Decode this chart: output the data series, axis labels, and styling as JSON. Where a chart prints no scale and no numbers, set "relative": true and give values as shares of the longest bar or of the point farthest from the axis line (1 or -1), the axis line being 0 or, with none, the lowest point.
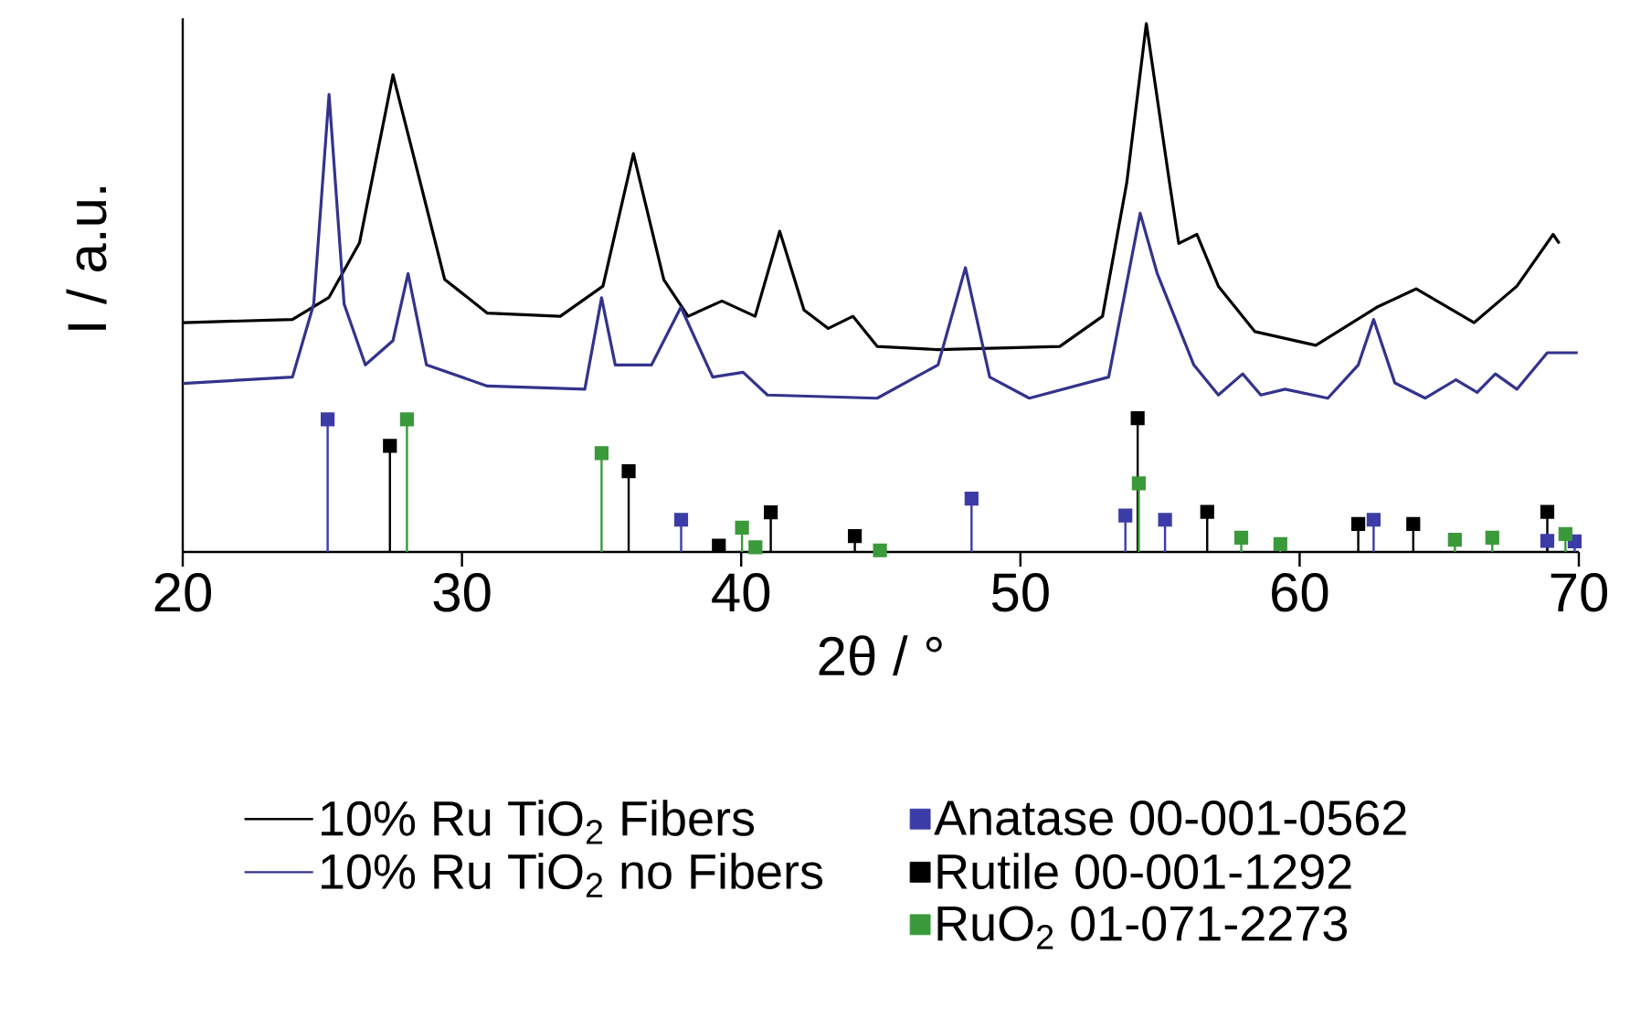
{
  "chart_data": {
    "type": "line",
    "relative": true,
    "xlabel": "2θ / °",
    "ylabel": "I / a.u.",
    "xlim": [
      20,
      70
    ],
    "xticks": [
      20,
      30,
      40,
      50,
      60,
      70
    ],
    "tick_labels": "x",
    "legend": "bottom",
    "series": [
      {
        "name": "10% Ru TiO$_{2}$ Fibers",
        "color": "#000000",
        "x": [
          20,
          23.93,
          25.24,
          26.33,
          27.53,
          28.51,
          29.38,
          30.91,
          33.52,
          35.05,
          36.14,
          37.23,
          38.1,
          39.31,
          40.5,
          41.38,
          42.25,
          43.12,
          44.0,
          44.87,
          47.03,
          51.41,
          52.94,
          53.81,
          54.51,
          55.34,
          55.67,
          56.32,
          57.09,
          58.4,
          60.58,
          62.76,
          64.18,
          66.25,
          67.78,
          69.08,
          69.3
        ],
        "values": [
          0.434,
          0.44,
          0.482,
          0.585,
          0.903,
          0.699,
          0.516,
          0.452,
          0.446,
          0.503,
          0.754,
          0.515,
          0.446,
          0.475,
          0.446,
          0.607,
          0.458,
          0.423,
          0.446,
          0.389,
          0.383,
          0.389,
          0.446,
          0.699,
          1.0,
          0.699,
          0.584,
          0.601,
          0.503,
          0.417,
          0.391,
          0.463,
          0.498,
          0.434,
          0.503,
          0.601,
          0.584
        ]
      },
      {
        "name": "10% Ru TiO$_{2}$ no Fibers",
        "color": "#33338c",
        "x": [
          20,
          23.93,
          24.69,
          25.24,
          25.78,
          26.54,
          27.53,
          28.07,
          28.73,
          30.91,
          34.4,
          35.0,
          35.49,
          36.79,
          37.84,
          38.98,
          40.07,
          40.94,
          44.87,
          47.05,
          48.03,
          48.9,
          50.32,
          53.16,
          54.29,
          54.9,
          56.21,
          57.09,
          57.96,
          58.61,
          59.48,
          61.01,
          62.1,
          62.65,
          63.41,
          64.5,
          65.6,
          66.36,
          67.01,
          67.78,
          68.87,
          69.96
        ],
        "values": [
          0.319,
          0.331,
          0.469,
          0.866,
          0.469,
          0.354,
          0.4,
          0.527,
          0.354,
          0.314,
          0.308,
          0.481,
          0.354,
          0.354,
          0.463,
          0.331,
          0.34,
          0.297,
          0.291,
          0.354,
          0.538,
          0.331,
          0.291,
          0.331,
          0.641,
          0.527,
          0.354,
          0.297,
          0.337,
          0.297,
          0.308,
          0.291,
          0.354,
          0.44,
          0.32,
          0.291,
          0.326,
          0.302,
          0.337,
          0.308,
          0.377,
          0.377
        ]
      },
      {
        "name": "Anatase 00-001-0562",
        "type": "lollipop",
        "marker": "square",
        "color": "#3c3ca8",
        "x": [
          25.19,
          37.85,
          48.25,
          53.76,
          55.18,
          62.65,
          68.87,
          69.85
        ],
        "values": [
          0.251,
          0.061,
          0.101,
          0.069,
          0.061,
          0.061,
          0.021,
          0.02
        ]
      },
      {
        "name": "Rutile 00-001-1292",
        "type": "lollipop",
        "marker": "square",
        "color": "#000000",
        "x": [
          27.42,
          35.97,
          39.2,
          41.06,
          44.07,
          54.2,
          56.69,
          62.1,
          64.07,
          68.87
        ],
        "values": [
          0.201,
          0.153,
          0.012,
          0.075,
          0.03,
          0.253,
          0.076,
          0.053,
          0.053,
          0.076
        ]
      },
      {
        "name": "RuO$_{2}$ 01-071-2273",
        "type": "lollipop",
        "marker": "square",
        "color": "#3a9a3a",
        "x": [
          28.03,
          35.0,
          40.03,
          40.51,
          44.97,
          54.24,
          57.91,
          59.31,
          65.56,
          66.9,
          69.52
        ],
        "values": [
          0.251,
          0.187,
          0.046,
          0.009,
          0.003,
          0.13,
          0.027,
          0.015,
          0.023,
          0.027,
          0.034
        ]
      }
    ]
  }
}
